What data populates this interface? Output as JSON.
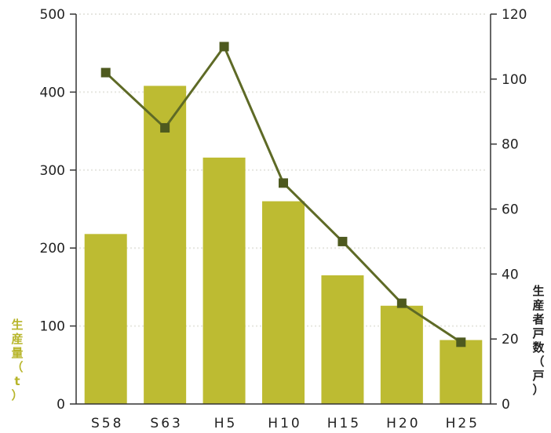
{
  "chart_data": {
    "type": "bar",
    "categories": [
      "S58",
      "S63",
      "H5",
      "H10",
      "H15",
      "H20",
      "H25"
    ],
    "series": [
      {
        "name": "生産量",
        "type": "bar",
        "axis": "left",
        "values": [
          218,
          408,
          316,
          260,
          165,
          126,
          82
        ]
      },
      {
        "name": "生産者戸数",
        "type": "line",
        "axis": "right",
        "values": [
          102,
          85,
          110,
          68,
          50,
          31,
          19
        ]
      }
    ],
    "ylabel_left": "生産量（t）",
    "ylabel_right": "生産者戸数（戸）",
    "ylim_left": [
      0,
      500
    ],
    "ylim_right": [
      0,
      120
    ],
    "yticks_left": [
      "0",
      "100",
      "200",
      "300",
      "400",
      "500"
    ],
    "yticks_right": [
      "0",
      "20",
      "40",
      "60",
      "80",
      "100",
      "120"
    ],
    "bar_color": "#bdbb32",
    "line_color": "#5e6a26",
    "marker_color": "#4e5a1f"
  }
}
